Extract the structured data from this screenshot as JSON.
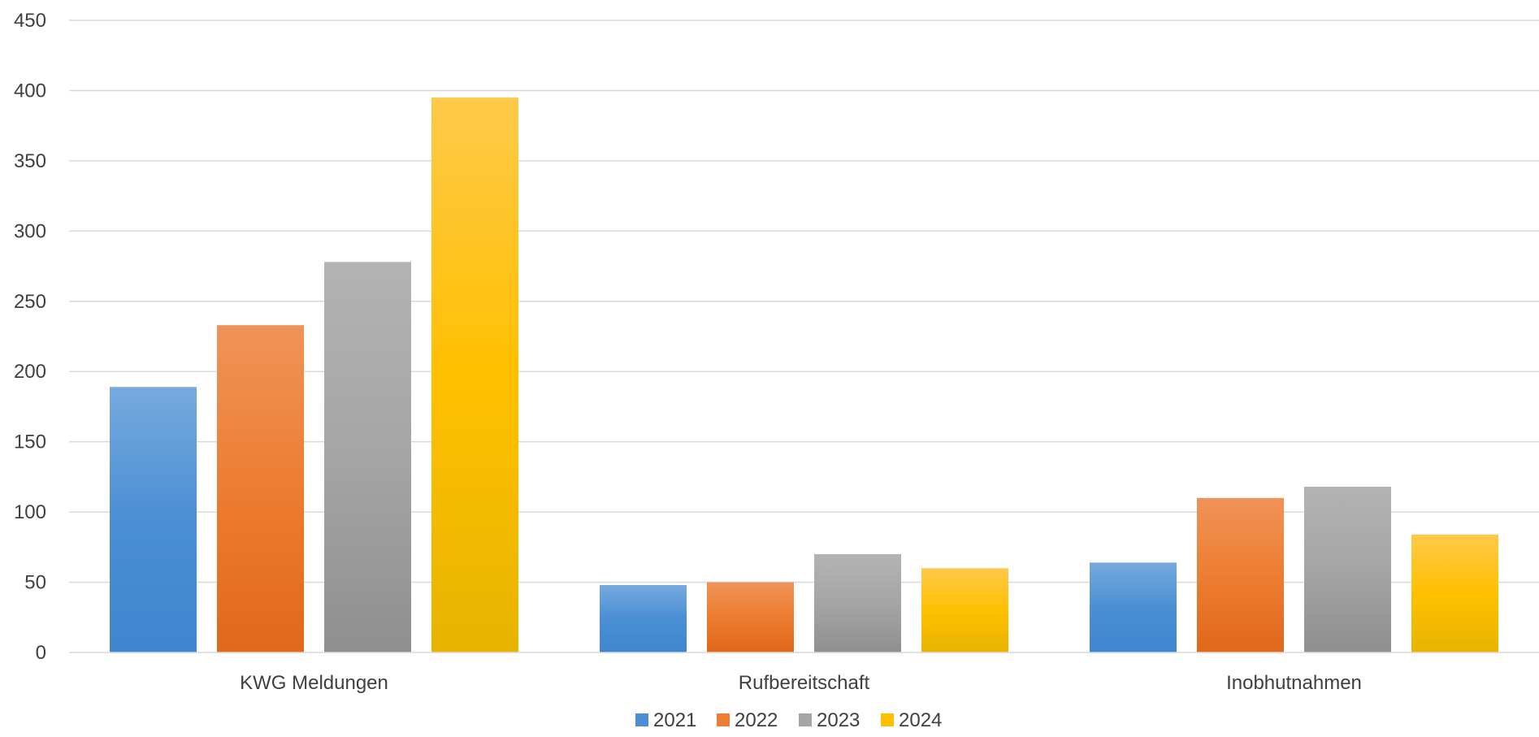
{
  "chart_data": {
    "type": "bar",
    "title": "",
    "xlabel": "",
    "ylabel": "",
    "categories": [
      "KWG Meldungen",
      "Rufbereitschaft",
      "Inobhutnahmen"
    ],
    "series": [
      {
        "name": "2021",
        "values": [
          189,
          48,
          64
        ],
        "color": "#4a8fd4",
        "color_top": "#77a9de",
        "color_bottom": "#3f86cf"
      },
      {
        "name": "2022",
        "values": [
          233,
          50,
          110
        ],
        "color": "#ed7d31",
        "color_top": "#f09358",
        "color_bottom": "#e0681a"
      },
      {
        "name": "2023",
        "values": [
          278,
          70,
          118
        ],
        "color": "#a5a5a5",
        "color_top": "#b3b3b3",
        "color_bottom": "#8f8f8f"
      },
      {
        "name": "2024",
        "values": [
          395,
          60,
          84
        ],
        "color": "#ffc000",
        "color_top": "#ffc94a",
        "color_bottom": "#e8b400"
      }
    ],
    "ylim": [
      0,
      450
    ],
    "yticks": [
      "0",
      "50",
      "100",
      "150",
      "200",
      "250",
      "300",
      "350",
      "400",
      "450"
    ],
    "grid": true,
    "legend_position": "bottom"
  }
}
